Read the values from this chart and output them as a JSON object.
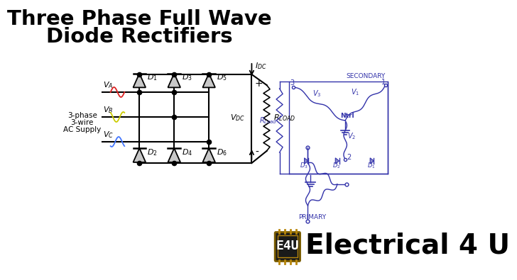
{
  "title_line1": "Three Phase Full Wave",
  "title_line2": "Diode Rectifiers",
  "title_fontsize": 21,
  "title_fontweight": "bold",
  "bg_color": "#ffffff",
  "circuit_color": "#000000",
  "diode_fill": "#c8c8c8",
  "blue_color": "#3333aa",
  "wave_colors": [
    "#dd2222",
    "#cccc00",
    "#4477ff"
  ],
  "supply_text": [
    "3-phase",
    "3-wire",
    "AC Supply"
  ],
  "logo_color": "#b8860b",
  "logo_text": "E4U",
  "brand_text": "Electrical 4 U",
  "brand_fontsize": 28
}
